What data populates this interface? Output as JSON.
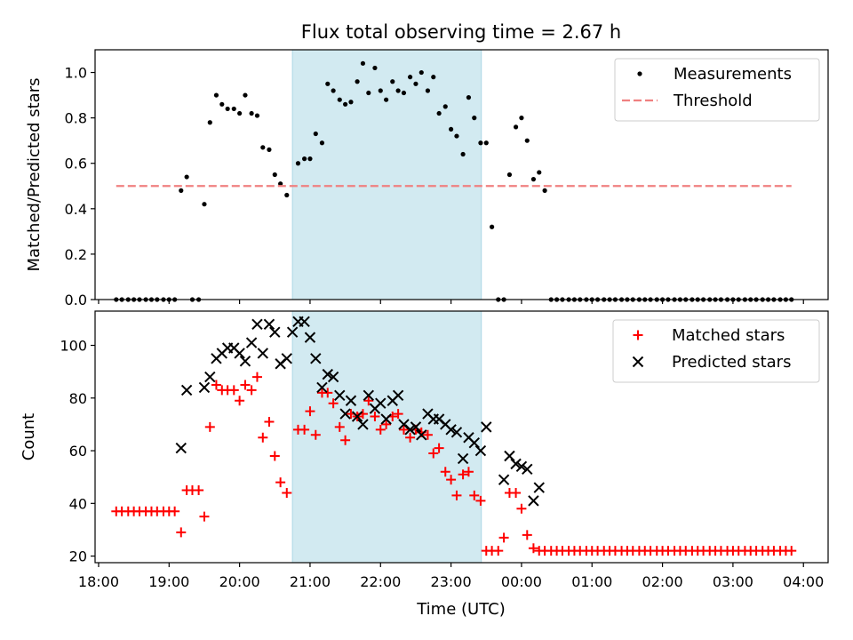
{
  "figure": {
    "title": "Flux total observing time = 2.67 h",
    "xlabel": "Time (UTC)",
    "x_ticks": [
      "18:00",
      "19:00",
      "20:00",
      "21:00",
      "22:00",
      "23:00",
      "00:00",
      "01:00",
      "02:00",
      "03:00",
      "04:00"
    ],
    "x_range_hours": [
      17.95,
      28.35
    ]
  },
  "chart_data": [
    {
      "type": "scatter",
      "panel": "top",
      "title": "Flux total observing time = 2.67 h",
      "xlabel": "",
      "ylabel": "Matched/Predicted stars",
      "xlim": [
        17.95,
        28.35
      ],
      "ylim": [
        0,
        1.1
      ],
      "y_ticks": [
        "0.0",
        "0.2",
        "0.4",
        "0.6",
        "0.8",
        "1.0"
      ],
      "y_tick_values": [
        0,
        0.2,
        0.4,
        0.6,
        0.8,
        1.0
      ],
      "shaded_x_range": [
        20.75,
        23.43
      ],
      "shade_color": "#add8e6",
      "legend_position": "top-right",
      "series": [
        {
          "name": "Measurements",
          "marker": "dot",
          "color": "#000000",
          "x": [
            18.25,
            18.33,
            18.42,
            18.5,
            18.58,
            18.67,
            18.75,
            18.83,
            18.92,
            19.0,
            19.08,
            19.17,
            19.25,
            19.33,
            19.42,
            19.5,
            19.58,
            19.67,
            19.75,
            19.83,
            19.92,
            20.0,
            20.08,
            20.17,
            20.25,
            20.33,
            20.42,
            20.5,
            20.58,
            20.67,
            20.83,
            20.92,
            21.0,
            21.08,
            21.17,
            21.25,
            21.33,
            21.42,
            21.5,
            21.58,
            21.67,
            21.75,
            21.83,
            21.92,
            22.0,
            22.08,
            22.17,
            22.25,
            22.33,
            22.42,
            22.5,
            22.58,
            22.67,
            22.75,
            22.83,
            22.92,
            23.0,
            23.08,
            23.17,
            23.25,
            23.33,
            23.42,
            23.5,
            23.58,
            23.67,
            23.75,
            23.83,
            23.92,
            24.0,
            24.08,
            24.17,
            24.25,
            24.33,
            24.42,
            24.5,
            24.58,
            24.67,
            24.75,
            24.83,
            24.92,
            25.0,
            25.08,
            25.17,
            25.25,
            25.33,
            25.42,
            25.5,
            25.58,
            25.67,
            25.75,
            25.83,
            25.92,
            26.0,
            26.08,
            26.17,
            26.25,
            26.33,
            26.42,
            26.5,
            26.58,
            26.67,
            26.75,
            26.83,
            26.92,
            27.0,
            27.08,
            27.17,
            27.25,
            27.33,
            27.42,
            27.5,
            27.58,
            27.67,
            27.75,
            27.83
          ],
          "y": [
            0,
            0,
            0,
            0,
            0,
            0,
            0,
            0,
            0,
            0,
            0,
            0.48,
            0.54,
            0,
            0,
            0.42,
            0.78,
            0.9,
            0.86,
            0.84,
            0.84,
            0.82,
            0.9,
            0.82,
            0.81,
            0.67,
            0.66,
            0.55,
            0.51,
            0.46,
            0.6,
            0.62,
            0.62,
            0.73,
            0.69,
            0.95,
            0.92,
            0.88,
            0.86,
            0.87,
            0.96,
            1.04,
            0.91,
            1.02,
            0.92,
            0.88,
            0.96,
            0.92,
            0.91,
            0.98,
            0.95,
            1.0,
            0.92,
            0.98,
            0.82,
            0.85,
            0.75,
            0.72,
            0.64,
            0.89,
            0.8,
            0.69,
            0.69,
            0.32,
            0,
            0,
            0.55,
            0.76,
            0.8,
            0.7,
            0.53,
            0.56,
            0.48,
            0,
            0,
            0,
            0,
            0,
            0,
            0,
            0,
            0,
            0,
            0,
            0,
            0,
            0,
            0,
            0,
            0,
            0,
            0,
            0,
            0,
            0,
            0,
            0,
            0,
            0,
            0,
            0,
            0,
            0,
            0,
            0,
            0,
            0,
            0,
            0,
            0,
            0,
            0,
            0,
            0,
            0
          ]
        },
        {
          "name": "Threshold",
          "marker": "dashed-line",
          "color": "#f08080",
          "x": [
            18.25,
            27.83
          ],
          "y": [
            0.5,
            0.5
          ]
        }
      ]
    },
    {
      "type": "scatter",
      "panel": "bottom",
      "title": "",
      "xlabel": "Time (UTC)",
      "ylabel": "Count",
      "xlim": [
        17.95,
        28.35
      ],
      "ylim": [
        17.5,
        113
      ],
      "y_ticks": [
        "20",
        "40",
        "60",
        "80",
        "100"
      ],
      "y_tick_values": [
        20,
        40,
        60,
        80,
        100
      ],
      "shaded_x_range": [
        20.75,
        23.43
      ],
      "shade_color": "#add8e6",
      "legend_position": "top-right",
      "series": [
        {
          "name": "Matched stars",
          "marker": "plus",
          "color": "#ff0000",
          "x": [
            18.25,
            18.33,
            18.42,
            18.5,
            18.58,
            18.67,
            18.75,
            18.83,
            18.92,
            19.0,
            19.08,
            19.17,
            19.25,
            19.33,
            19.42,
            19.5,
            19.58,
            19.67,
            19.75,
            19.83,
            19.92,
            20.0,
            20.08,
            20.17,
            20.25,
            20.33,
            20.42,
            20.5,
            20.58,
            20.67,
            20.83,
            20.92,
            21.0,
            21.08,
            21.17,
            21.25,
            21.33,
            21.42,
            21.5,
            21.58,
            21.67,
            21.75,
            21.83,
            21.92,
            22.0,
            22.08,
            22.17,
            22.25,
            22.33,
            22.42,
            22.5,
            22.58,
            22.67,
            22.75,
            22.83,
            22.92,
            23.0,
            23.08,
            23.17,
            23.25,
            23.33,
            23.42,
            23.5,
            23.58,
            23.67,
            23.75,
            23.83,
            23.92,
            24.0,
            24.08,
            24.17,
            24.25,
            24.33,
            24.42,
            24.5,
            24.58,
            24.67,
            24.75,
            24.83,
            24.92,
            25.0,
            25.08,
            25.17,
            25.25,
            25.33,
            25.42,
            25.5,
            25.58,
            25.67,
            25.75,
            25.83,
            25.92,
            26.0,
            26.08,
            26.17,
            26.25,
            26.33,
            26.42,
            26.5,
            26.58,
            26.67,
            26.75,
            26.83,
            26.92,
            27.0,
            27.08,
            27.17,
            27.25,
            27.33,
            27.42,
            27.5,
            27.58,
            27.67,
            27.75,
            27.83
          ],
          "y": [
            37,
            37,
            37,
            37,
            37,
            37,
            37,
            37,
            37,
            37,
            37,
            29,
            45,
            45,
            45,
            35,
            69,
            85,
            83,
            83,
            83,
            79,
            85,
            83,
            88,
            65,
            71,
            58,
            48,
            44,
            68,
            68,
            75,
            66,
            82,
            82,
            78,
            69,
            64,
            74,
            73,
            74,
            79,
            73,
            68,
            70,
            73,
            74,
            68,
            65,
            68,
            67,
            66,
            59,
            61,
            52,
            49,
            43,
            51,
            52,
            43,
            41,
            22,
            22,
            22,
            27,
            44,
            44,
            38,
            28,
            23,
            22,
            22,
            22,
            22,
            22,
            22,
            22,
            22,
            22,
            22,
            22,
            22,
            22,
            22,
            22,
            22,
            22,
            22,
            22,
            22,
            22,
            22,
            22,
            22,
            22,
            22,
            22,
            22,
            22,
            22,
            22,
            22,
            22,
            22,
            22,
            22,
            22,
            22,
            22,
            22,
            22,
            22,
            22,
            22
          ]
        },
        {
          "name": "Predicted stars",
          "marker": "x",
          "color": "#000000",
          "x": [
            19.17,
            19.25,
            19.5,
            19.58,
            19.67,
            19.75,
            19.83,
            19.92,
            20.0,
            20.08,
            20.17,
            20.25,
            20.33,
            20.42,
            20.5,
            20.58,
            20.67,
            20.75,
            20.83,
            20.92,
            21.0,
            21.08,
            21.17,
            21.25,
            21.33,
            21.42,
            21.5,
            21.58,
            21.67,
            21.75,
            21.83,
            21.92,
            22.0,
            22.08,
            22.17,
            22.25,
            22.33,
            22.42,
            22.5,
            22.58,
            22.67,
            22.75,
            22.83,
            22.92,
            23.0,
            23.08,
            23.17,
            23.25,
            23.33,
            23.42,
            23.5,
            23.75,
            23.83,
            23.92,
            24.0,
            24.08,
            24.17,
            24.25
          ],
          "y": [
            61,
            83,
            84,
            88,
            95,
            97,
            99,
            99,
            97,
            94,
            101,
            108,
            97,
            108,
            105,
            93,
            95,
            105,
            109,
            109,
            103,
            95,
            84,
            89,
            88,
            81,
            74,
            79,
            73,
            70,
            81,
            76,
            78,
            72,
            79,
            81,
            70,
            68,
            69,
            66,
            74,
            72,
            72,
            70,
            68,
            67,
            57,
            65,
            63,
            60,
            69,
            49,
            58,
            55,
            54,
            53,
            41,
            46
          ]
        }
      ]
    }
  ]
}
